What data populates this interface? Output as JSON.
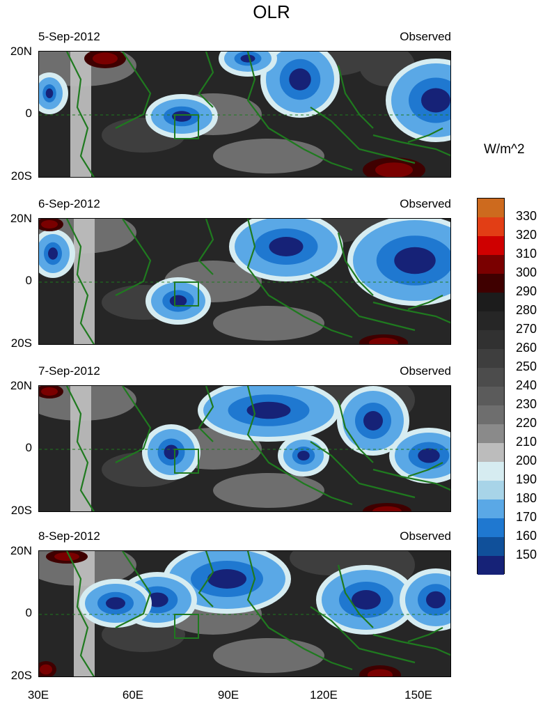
{
  "title": "OLR",
  "units": "W/m^2",
  "source_label": "Observed",
  "lat_labels": [
    "20N",
    "0",
    "20S"
  ],
  "lon_labels": [
    "30E",
    "60E",
    "90E",
    "120E",
    "150E"
  ],
  "panels": [
    {
      "date": "5-Sep-2012"
    },
    {
      "date": "6-Sep-2012"
    },
    {
      "date": "7-Sep-2012"
    },
    {
      "date": "8-Sep-2012"
    }
  ],
  "colorbar": {
    "levels": [
      "330",
      "320",
      "310",
      "300",
      "290",
      "280",
      "270",
      "260",
      "250",
      "240",
      "230",
      "220",
      "210",
      "200",
      "190",
      "180",
      "170",
      "160",
      "150"
    ],
    "colors": [
      "#cd6a1e",
      "#e23e15",
      "#cf0000",
      "#7a0000",
      "#3f0000",
      "#1c1c1c",
      "#262626",
      "#313131",
      "#3e3e3e",
      "#4c4c4c",
      "#5b5b5b",
      "#6e6e6e",
      "#8a8a8a",
      "#bcbcbc",
      "#d6ecf1",
      "#a8d4e8",
      "#5aa8e6",
      "#1f78d0",
      "#10509a",
      "#162277"
    ]
  },
  "chart_data": {
    "type": "heatmap",
    "title": "OLR",
    "units": "W/m^2",
    "x_range": [
      "30E",
      "160E"
    ],
    "y_range": [
      "20S",
      "20N"
    ],
    "dates": [
      "5-Sep-2012",
      "6-Sep-2012",
      "7-Sep-2012",
      "8-Sep-2012"
    ],
    "contour_levels": [
      150,
      160,
      170,
      180,
      190,
      200,
      210,
      220,
      230,
      240,
      250,
      260,
      270,
      280,
      290,
      300,
      310,
      320,
      330
    ]
  }
}
